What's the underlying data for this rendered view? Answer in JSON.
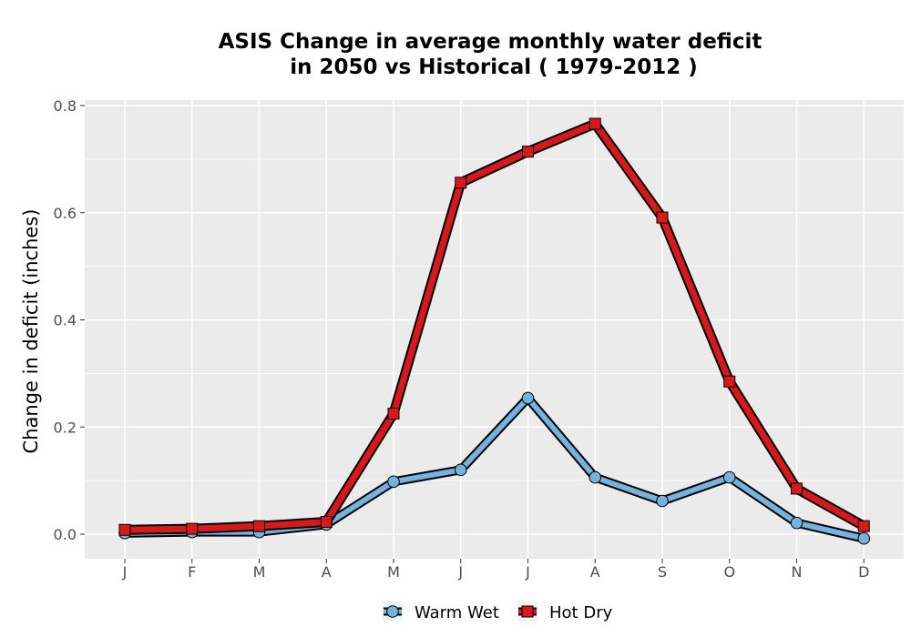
{
  "chart_data": {
    "type": "line",
    "title_line1": "ASIS  Change in average monthly water deficit",
    "title_line2": "in 2050 vs Historical ( 1979-2012 )",
    "xlabel": "",
    "ylabel": "Change in deficit (inches)",
    "categories": [
      "J",
      "F",
      "M",
      "A",
      "M",
      "J",
      "J",
      "A",
      "S",
      "O",
      "N",
      "D"
    ],
    "ylim": [
      -0.045,
      0.81
    ],
    "yticks": [
      0.0,
      0.2,
      0.4,
      0.6,
      0.8
    ],
    "ytick_labels": [
      "0.0",
      "0.2",
      "0.4",
      "0.6",
      "0.8"
    ],
    "grid": true,
    "legend_position": "bottom",
    "series": [
      {
        "name": "Warm Wet",
        "color": "#74b3e0",
        "marker": "circle",
        "values": [
          0.002,
          0.004,
          0.004,
          0.018,
          0.098,
          0.12,
          0.254,
          0.106,
          0.062,
          0.106,
          0.021,
          -0.008
        ]
      },
      {
        "name": "Hot Dry",
        "color": "#d7191c",
        "marker": "square",
        "values": [
          0.008,
          0.01,
          0.015,
          0.023,
          0.225,
          0.656,
          0.714,
          0.766,
          0.591,
          0.285,
          0.085,
          0.015
        ]
      }
    ]
  }
}
